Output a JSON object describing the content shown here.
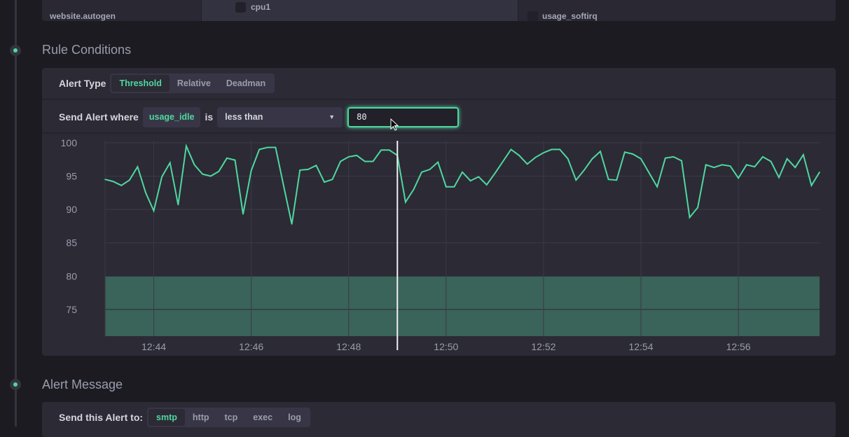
{
  "top_panel": {
    "db_item": "website.autogen",
    "tag_item": "cpu1",
    "field_item": "usage_softirq"
  },
  "rule_conditions": {
    "heading": "Rule Conditions",
    "alert_type_label": "Alert Type",
    "alert_types": [
      {
        "label": "Threshold",
        "active": true
      },
      {
        "label": "Relative",
        "active": false
      },
      {
        "label": "Deadman",
        "active": false
      }
    ],
    "send_alert_where_label": "Send Alert where",
    "field": "usage_idle",
    "is_label": "is",
    "operator": "less than",
    "threshold_value": "80"
  },
  "chart_data": {
    "type": "line",
    "ylim": [
      71,
      100.3
    ],
    "yticks": [
      100,
      95,
      90,
      85,
      80,
      75
    ],
    "xticks": [
      "12:44",
      "12:46",
      "12:48",
      "12:50",
      "12:52",
      "12:54",
      "12:56"
    ],
    "x_start": "12:43:00",
    "x_end": "12:57:40",
    "interval_seconds": 10,
    "threshold": {
      "operator": "less than",
      "value": 80,
      "color": "#3a6359"
    },
    "line_color": "#4ed8a0",
    "hover_time": "12:49:00",
    "grid": true,
    "values": [
      94.5,
      94.2,
      93.6,
      94.4,
      96.4,
      92.5,
      89.8,
      94.9,
      97.0,
      90.7,
      99.5,
      96.7,
      95.3,
      95.0,
      95.7,
      97.7,
      97.4,
      89.3,
      95.8,
      99.0,
      99.3,
      99.3,
      93.5,
      87.8,
      95.9,
      96.0,
      96.6,
      94.1,
      94.5,
      97.2,
      97.9,
      98.1,
      97.2,
      97.2,
      98.9,
      98.9,
      98.1,
      91.1,
      93.0,
      95.6,
      96.0,
      97.1,
      93.4,
      93.4,
      95.6,
      94.3,
      94.9,
      93.7,
      95.4,
      97.2,
      99.0,
      98.1,
      96.8,
      97.8,
      98.5,
      99.0,
      99.0,
      97.6,
      94.4,
      95.9,
      97.6,
      98.7,
      94.5,
      94.4,
      98.6,
      98.3,
      97.6,
      95.5,
      93.4,
      97.7,
      97.9,
      97.3,
      88.8,
      90.3,
      96.7,
      96.3,
      96.7,
      96.5,
      94.7,
      96.7,
      96.4,
      97.9,
      97.2,
      94.8,
      97.6,
      96.3,
      98.2,
      93.6,
      95.6
    ]
  },
  "alert_message": {
    "heading": "Alert Message",
    "send_to_label": "Send this Alert to:",
    "handlers": [
      {
        "label": "smtp",
        "active": true
      },
      {
        "label": "http",
        "active": false
      },
      {
        "label": "tcp",
        "active": false
      },
      {
        "label": "exec",
        "active": false
      },
      {
        "label": "log",
        "active": false
      }
    ]
  }
}
